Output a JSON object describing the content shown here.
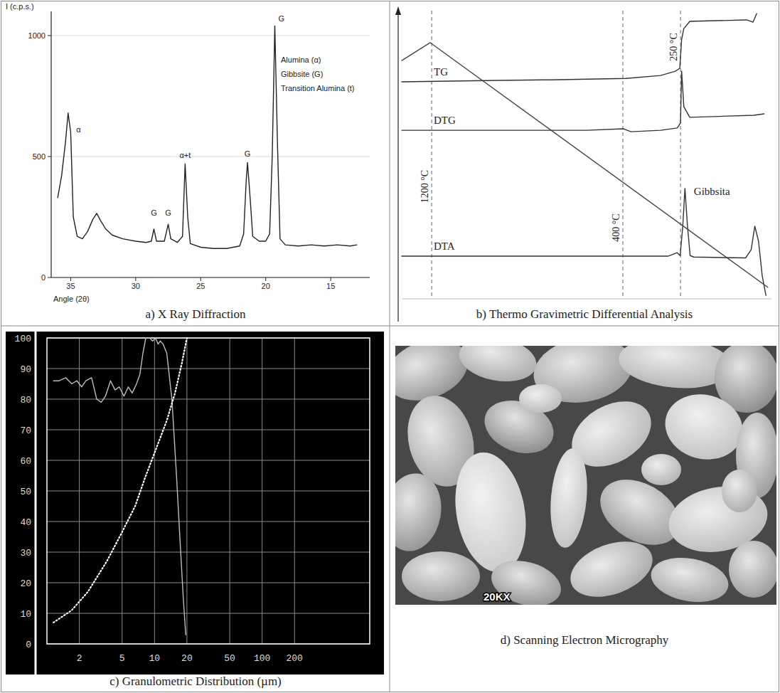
{
  "chart_data": [
    {
      "type": "line",
      "caption": "a) X Ray Diffraction",
      "x_label": "Angle (2θ)",
      "y_label": "I (c.p.s.)",
      "x": [
        36.0,
        35.7,
        35.4,
        35.2,
        35.0,
        34.8,
        34.5,
        34.1,
        33.7,
        33.3,
        33.0,
        32.7,
        32.3,
        31.8,
        31.0,
        30.0,
        29.2,
        28.8,
        28.6,
        28.4,
        27.8,
        27.5,
        27.3,
        26.8,
        26.4,
        26.2,
        26.0,
        25.8,
        25.0,
        24.0,
        23.0,
        22.0,
        21.7,
        21.5,
        21.4,
        21.2,
        21.0,
        20.5,
        20.0,
        19.7,
        19.5,
        19.3,
        19.1,
        18.9,
        18.5,
        17.5,
        16.5,
        15.5,
        14.5,
        13.5,
        13.0
      ],
      "values": [
        330,
        420,
        560,
        680,
        600,
        250,
        170,
        160,
        190,
        240,
        265,
        235,
        200,
        175,
        160,
        150,
        145,
        150,
        200,
        150,
        150,
        220,
        160,
        145,
        170,
        470,
        250,
        140,
        125,
        120,
        120,
        130,
        180,
        400,
        475,
        330,
        170,
        150,
        150,
        180,
        500,
        1040,
        560,
        160,
        135,
        130,
        135,
        130,
        135,
        130,
        135
      ],
      "color": "#222222",
      "line_style": "solid",
      "xlim": [
        36.5,
        12
      ],
      "ylim": [
        0,
        1100
      ],
      "xticks": [
        35,
        30,
        25,
        20,
        15
      ],
      "yticks": [
        0,
        500,
        1000
      ],
      "grid": true,
      "phases": [
        "Alumina (α)",
        "Gibbsite (G)",
        "Transition Alumina (t)"
      ],
      "annotations": [
        {
          "text": "α",
          "x": 34.4,
          "y": 600
        },
        {
          "text": "G",
          "x": 28.6,
          "y": 255
        },
        {
          "text": "G",
          "x": 27.5,
          "y": 255
        },
        {
          "text": "α+t",
          "x": 26.2,
          "y": 495
        },
        {
          "text": "G",
          "x": 21.4,
          "y": 500
        },
        {
          "text": "G",
          "x": 18.8,
          "y": 1060
        }
      ]
    },
    {
      "type": "line",
      "caption": "b) Thermo Gravimetric Differential Analysis",
      "xlim": [
        0,
        100
      ],
      "ylim": [
        0,
        100
      ],
      "tick_labels": false,
      "series": [
        {
          "name": "TG",
          "color": "#333333",
          "line_style": "solid",
          "x": [
            0,
            26,
            40,
            60.6,
            70,
            74,
            75.2,
            75.7,
            76.3,
            77.9,
            93.3,
            95,
            96
          ],
          "values": [
            75.3,
            75.8,
            76,
            76.5,
            77.5,
            79,
            80,
            90,
            93.8,
            96.3,
            96.8,
            96,
            99
          ]
        },
        {
          "name": "DTG",
          "color": "#333333",
          "line_style": "solid",
          "x": [
            0,
            50,
            60,
            62,
            70,
            74.5,
            75.4,
            75.7,
            76.3,
            77.9,
            95.2,
            98
          ],
          "values": [
            58.5,
            58.5,
            59,
            58,
            58.5,
            59.3,
            61,
            79,
            66.7,
            63,
            63.7,
            64.2
          ]
        },
        {
          "name": "DTA",
          "color": "#333333",
          "line_style": "solid",
          "x": [
            0,
            72,
            74.5,
            75.3,
            76,
            76.6,
            77.3,
            78,
            79,
            93,
            94.5,
            95.5,
            96.5,
            97.5,
            98.5
          ],
          "values": [
            14.8,
            14.8,
            16,
            15,
            25,
            38.3,
            25,
            15,
            14.5,
            14.2,
            17,
            25.2,
            20,
            8,
            1.2
          ]
        },
        {
          "color": "#444444",
          "line_style": "solid",
          "x": [
            0,
            7.7,
            99
          ],
          "values": [
            82.7,
            88.9,
            4
          ]
        }
      ],
      "markers": [
        {
          "x": 8.1,
          "label": "1200 °C"
        },
        {
          "x": 59.8,
          "label": "400 °C"
        },
        {
          "x": 75.4,
          "label": "250 °C"
        }
      ],
      "annotations": [
        {
          "text": "Gibbsita",
          "x": 79,
          "y": 36
        }
      ]
    },
    {
      "type": "line",
      "caption": "c) Granulometric Distribution (µm)",
      "log": "x",
      "xlim": [
        1,
        1000
      ],
      "ylim": [
        0,
        100
      ],
      "xticks": [
        2,
        5,
        10,
        20,
        50,
        100,
        200
      ],
      "yticks": [
        0,
        10,
        20,
        30,
        40,
        50,
        60,
        70,
        80,
        90,
        100
      ],
      "grid": true,
      "series": [
        {
          "color": "#bdbdbd",
          "line_style": "solid",
          "x": [
            1.15,
            1.3,
            1.5,
            1.7,
            1.9,
            2.1,
            2.3,
            2.6,
            2.9,
            3.2,
            3.5,
            3.9,
            4.3,
            4.7,
            5.2,
            5.7,
            6.2,
            6.8,
            7.3,
            7.8,
            8.3,
            9,
            9.6,
            10.2,
            10.8,
            11.3,
            12,
            13,
            14.5,
            16,
            17.5,
            18.5,
            19.5
          ],
          "values": [
            86,
            86,
            87,
            85,
            86,
            84,
            86,
            87,
            80,
            79,
            81,
            86,
            83,
            84,
            81,
            84,
            82,
            85,
            88,
            95,
            100,
            100,
            99,
            100,
            98,
            99,
            98,
            95,
            80,
            55,
            30,
            15,
            3
          ]
        },
        {
          "color": "#ffffff",
          "line_style": "dotted",
          "x": [
            1.15,
            1.7,
            2.4,
            3.6,
            4.9,
            6.6,
            8.3,
            10.4,
            13,
            15.5,
            18,
            20
          ],
          "values": [
            7,
            11,
            17,
            27,
            36,
            45,
            55,
            64,
            73,
            82,
            92,
            100
          ]
        }
      ]
    },
    {
      "type": "image",
      "caption": "d) Scanning Electron Micrography",
      "overlay": "20KX"
    }
  ]
}
